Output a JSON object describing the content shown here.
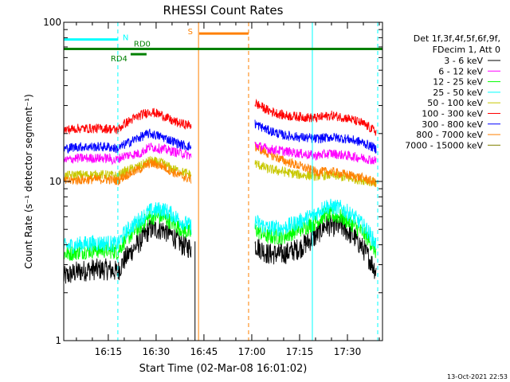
{
  "chart_data": {
    "type": "line",
    "title": "RHESSI Count Rates",
    "xlabel": "Start Time (02-Mar-08 16:01:02)",
    "ylabel": "Count Rate (s⁻¹ detector segment⁻¹)",
    "yscale": "log",
    "ylim": [
      1,
      100
    ],
    "y_tick_labels": [
      "1",
      "10",
      "100"
    ],
    "x_tick_labels": [
      "16:15",
      "16:30",
      "16:45",
      "17:00",
      "17:15",
      "17:30"
    ],
    "x_ticks_minutes": [
      15,
      30,
      45,
      60,
      75,
      90
    ],
    "xlim_minutes": [
      1.03,
      101
    ],
    "grid": false,
    "legend_header": [
      "Det 1f,3f,4f,5f,6f,9f,",
      "FDecim 1, Att 0"
    ],
    "legend_position": "right",
    "timestamp": "13-Oct-2021 22:53",
    "series": [
      {
        "name": "3 - 6 keV",
        "color": "#000000",
        "segments": [
          {
            "x": [
              1,
              5,
              10,
              15,
              18,
              20,
              25,
              28,
              32,
              35,
              38,
              41
            ],
            "y": [
              2.5,
              2.7,
              2.8,
              2.8,
              2.7,
              3.2,
              4.2,
              5.0,
              5.0,
              4.6,
              4.0,
              3.8
            ]
          },
          {
            "x": [
              61,
              65,
              70,
              75,
              80,
              83,
              88,
              92,
              96,
              99
            ],
            "y": [
              4.0,
              3.5,
              3.5,
              3.8,
              4.5,
              5.3,
              5.2,
              4.5,
              3.5,
              2.7
            ]
          }
        ]
      },
      {
        "name": "6 - 12 keV",
        "color": "#ff00ff",
        "segments": [
          {
            "x": [
              1,
              5,
              10,
              15,
              17,
              20,
              25,
              28,
              32,
              35,
              38,
              41
            ],
            "y": [
              13.5,
              14.0,
              14.0,
              14.0,
              13.5,
              14.5,
              15.0,
              16.5,
              16.0,
              15.5,
              15.0,
              14.5
            ]
          },
          {
            "x": [
              61,
              65,
              70,
              75,
              80,
              85,
              90,
              95,
              99
            ],
            "y": [
              17.0,
              16.0,
              15.5,
              15.0,
              14.5,
              15.0,
              14.5,
              14.0,
              13.5
            ]
          }
        ]
      },
      {
        "name": "12 - 25 keV",
        "color": "#00ff00",
        "segments": [
          {
            "x": [
              1,
              5,
              10,
              15,
              18,
              20,
              25,
              28,
              32,
              35,
              38,
              41
            ],
            "y": [
              3.5,
              3.6,
              3.7,
              3.7,
              3.6,
              4.2,
              5.2,
              6.0,
              6.0,
              5.5,
              5.0,
              4.7
            ]
          },
          {
            "x": [
              61,
              65,
              70,
              75,
              80,
              83,
              88,
              92,
              96,
              99
            ],
            "y": [
              5.0,
              4.5,
              4.5,
              5.0,
              5.5,
              6.2,
              6.0,
              5.3,
              4.5,
              3.6
            ]
          }
        ]
      },
      {
        "name": "25 - 50 keV",
        "color": "#00ffff",
        "segments": [
          {
            "x": [
              1,
              5,
              10,
              15,
              18,
              20,
              25,
              28,
              32,
              35,
              38,
              41
            ],
            "y": [
              3.9,
              4.0,
              4.1,
              4.1,
              4.0,
              4.7,
              5.8,
              6.5,
              6.7,
              6.2,
              5.6,
              5.2
            ]
          },
          {
            "x": [
              61,
              65,
              70,
              75,
              80,
              83,
              88,
              92,
              96,
              99
            ],
            "y": [
              5.6,
              5.1,
              5.1,
              5.6,
              6.2,
              7.0,
              6.8,
              6.0,
              5.0,
              4.0
            ]
          }
        ]
      },
      {
        "name": "50 - 100 keV",
        "color": "#c8c800",
        "segments": [
          {
            "x": [
              1,
              5,
              10,
              15,
              18,
              20,
              25,
              28,
              32,
              35,
              38,
              41
            ],
            "y": [
              10.8,
              11.0,
              11.0,
              11.0,
              10.8,
              11.5,
              12.5,
              13.5,
              13.0,
              12.0,
              11.5,
              11.0
            ]
          },
          {
            "x": [
              61,
              65,
              70,
              75,
              80,
              85,
              90,
              95,
              99
            ],
            "y": [
              13.0,
              12.0,
              11.5,
              11.0,
              10.8,
              11.0,
              10.5,
              10.2,
              9.8
            ]
          }
        ]
      },
      {
        "name": "100 - 300 keV",
        "color": "#ff0000",
        "segments": [
          {
            "x": [
              1,
              5,
              10,
              15,
              18,
              20,
              25,
              28,
              32,
              35,
              38,
              41
            ],
            "y": [
              21.0,
              21.5,
              21.5,
              21.5,
              21.0,
              23.0,
              26.0,
              27.5,
              26.0,
              24.0,
              23.0,
              22.5
            ]
          },
          {
            "x": [
              61,
              65,
              70,
              75,
              80,
              85,
              90,
              95,
              99
            ],
            "y": [
              31.0,
              28.0,
              26.0,
              25.5,
              25.0,
              26.0,
              25.0,
              23.0,
              20.5
            ]
          }
        ]
      },
      {
        "name": "300 - 800 keV",
        "color": "#0000ff",
        "segments": [
          {
            "x": [
              1,
              5,
              10,
              15,
              18,
              20,
              25,
              28,
              32,
              35,
              38,
              41
            ],
            "y": [
              16.0,
              16.5,
              16.5,
              16.5,
              16.0,
              17.0,
              19.0,
              20.0,
              19.0,
              18.0,
              17.0,
              16.5
            ]
          },
          {
            "x": [
              61,
              65,
              70,
              75,
              80,
              85,
              90,
              95,
              99
            ],
            "y": [
              23.0,
              21.0,
              19.5,
              19.0,
              18.5,
              19.0,
              18.5,
              17.5,
              16.0
            ]
          }
        ]
      },
      {
        "name": "800 - 7000 keV",
        "color": "#ff8000",
        "segments": [
          {
            "x": [
              1,
              5,
              10,
              15,
              18,
              20,
              25,
              28,
              32,
              35,
              38,
              41
            ],
            "y": [
              10.0,
              10.2,
              10.3,
              10.3,
              10.1,
              10.8,
              12.0,
              13.0,
              12.5,
              11.5,
              10.8,
              10.3
            ]
          },
          {
            "x": [
              61,
              65,
              70,
              75,
              80,
              85,
              90,
              95,
              99
            ],
            "y": [
              16.5,
              15.0,
              13.5,
              12.5,
              11.5,
              11.5,
              11.0,
              10.5,
              9.8
            ]
          }
        ]
      },
      {
        "name": "7000 - 15000 keV",
        "color": "#808000",
        "segments": []
      }
    ],
    "annotations": [
      {
        "text": "N",
        "color": "#00ffff",
        "x_range": [
          1.03,
          18
        ]
      },
      {
        "text": "S",
        "color": "#ff8000",
        "x_range": [
          43.5,
          59
        ]
      },
      {
        "text": "RD0",
        "color": "#008000",
        "x_range": [
          1.03,
          101
        ]
      },
      {
        "text": "RD4",
        "color": "#008000",
        "x_range": [
          22,
          27
        ]
      }
    ],
    "vertical_markers": [
      {
        "x": 1.03,
        "color": "#00ffff",
        "style": "solid"
      },
      {
        "x": 18,
        "color": "#00ffff",
        "style": "dashed"
      },
      {
        "x": 43.3,
        "color": "#ff8000",
        "style": "solid"
      },
      {
        "x": 59,
        "color": "#ff8000",
        "style": "dashed"
      },
      {
        "x": 79,
        "color": "#00ffff",
        "style": "solid"
      },
      {
        "x": 99.5,
        "color": "#00ffff",
        "style": "dashed"
      }
    ]
  }
}
